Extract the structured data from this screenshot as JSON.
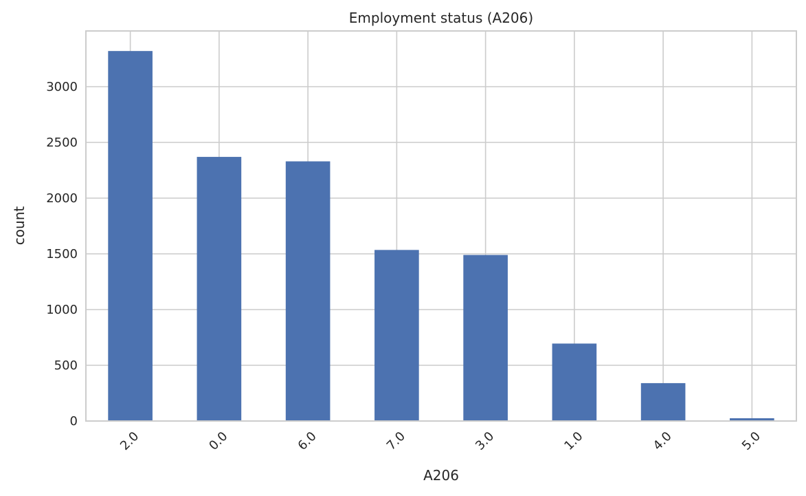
{
  "chart_data": {
    "type": "bar",
    "title": "Employment status (A206)",
    "xlabel": "A206",
    "ylabel": "count",
    "categories": [
      "2.0",
      "0.0",
      "6.0",
      "7.0",
      "3.0",
      "1.0",
      "4.0",
      "5.0"
    ],
    "values": [
      3320,
      2370,
      2330,
      1535,
      1490,
      695,
      340,
      25
    ],
    "ylim": [
      0,
      3500
    ],
    "yticks": [
      0,
      500,
      1000,
      1500,
      2000,
      2500,
      3000
    ],
    "grid": true,
    "bar_color": "#4c72b0",
    "grid_color": "#cccccc",
    "x_tick_rotation": 45
  }
}
